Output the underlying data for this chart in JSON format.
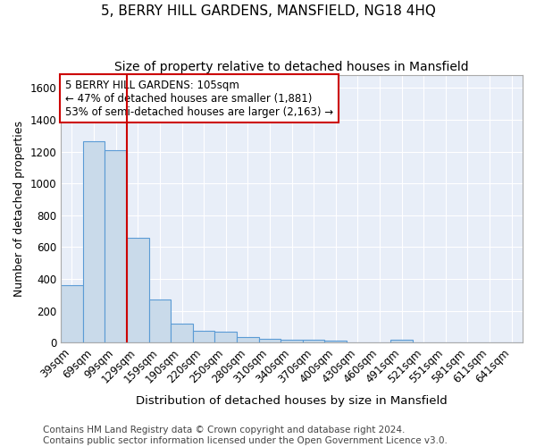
{
  "title": "5, BERRY HILL GARDENS, MANSFIELD, NG18 4HQ",
  "subtitle": "Size of property relative to detached houses in Mansfield",
  "xlabel": "Distribution of detached houses by size in Mansfield",
  "ylabel": "Number of detached properties",
  "footer": "Contains HM Land Registry data © Crown copyright and database right 2024.\nContains public sector information licensed under the Open Government Licence v3.0.",
  "bar_color": "#c9daea",
  "bar_edge_color": "#5b9bd5",
  "background_color": "#e8eef8",
  "annotation_box_color": "#ffffff",
  "annotation_border_color": "#cc0000",
  "vline_color": "#cc0000",
  "categories": [
    "39sqm",
    "69sqm",
    "99sqm",
    "129sqm",
    "159sqm",
    "190sqm",
    "220sqm",
    "250sqm",
    "280sqm",
    "310sqm",
    "340sqm",
    "370sqm",
    "400sqm",
    "430sqm",
    "460sqm",
    "491sqm",
    "521sqm",
    "551sqm",
    "581sqm",
    "611sqm",
    "641sqm"
  ],
  "values": [
    360,
    1265,
    1210,
    660,
    270,
    120,
    72,
    68,
    35,
    22,
    17,
    15,
    14,
    0,
    0,
    18,
    0,
    0,
    0,
    0,
    0
  ],
  "ylim": [
    0,
    1680
  ],
  "yticks": [
    0,
    200,
    400,
    600,
    800,
    1000,
    1200,
    1400,
    1600
  ],
  "vline_position": 2.5,
  "annotation_text_line1": "5 BERRY HILL GARDENS: 105sqm",
  "annotation_text_line2": "← 47% of detached houses are smaller (1,881)",
  "annotation_text_line3": "53% of semi-detached houses are larger (2,163) →",
  "grid_color": "#ffffff",
  "title_fontsize": 11,
  "subtitle_fontsize": 10,
  "xlabel_fontsize": 9.5,
  "ylabel_fontsize": 9,
  "tick_fontsize": 8.5,
  "annotation_fontsize": 8.5,
  "footer_fontsize": 7.5
}
